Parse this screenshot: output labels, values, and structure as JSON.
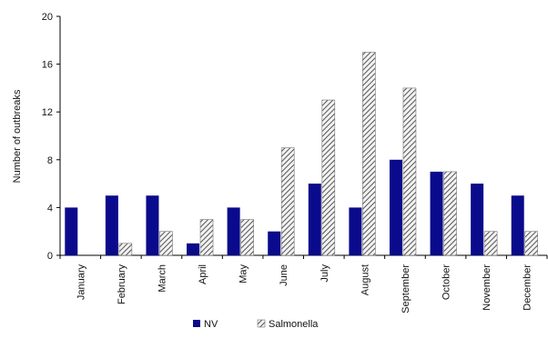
{
  "chart_data": {
    "type": "bar",
    "title": "",
    "xlabel": "",
    "ylabel": "Number of outbreaks",
    "ylim": [
      0,
      20
    ],
    "yticks": [
      0,
      4,
      8,
      12,
      16,
      20
    ],
    "grid": false,
    "legend_position": "bottom",
    "categories": [
      "January",
      "February",
      "March",
      "April",
      "May",
      "June",
      "July",
      "August",
      "September",
      "October",
      "November",
      "December"
    ],
    "series": [
      {
        "name": "NV",
        "color": "#0a0a8c",
        "pattern": "solid",
        "values": [
          4,
          5,
          5,
          1,
          4,
          2,
          6,
          4,
          8,
          7,
          6,
          5
        ]
      },
      {
        "name": "Salmonella",
        "color": "#6e6e6e",
        "pattern": "diagonal-hatch",
        "values": [
          0,
          1,
          2,
          3,
          3,
          9,
          13,
          17,
          14,
          7,
          2,
          2
        ]
      }
    ]
  }
}
